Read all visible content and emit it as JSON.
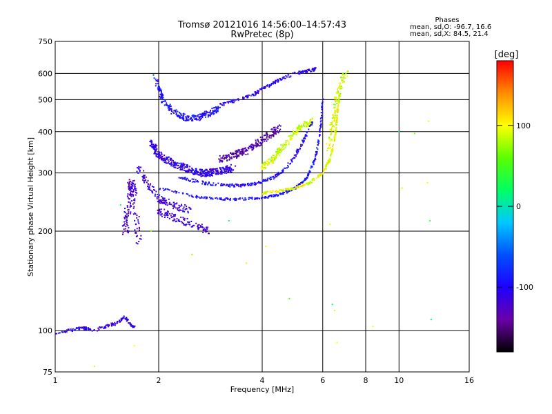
{
  "chart_data": {
    "type": "scatter",
    "title": "Tromsø 20121016 14:56:00–14:57:43",
    "subtitle": "RwPretec (8p)",
    "xlabel": "Frequency [MHz]",
    "ylabel": "Stationary phase Virtual Height [km]",
    "x_scale": "log",
    "y_scale": "log",
    "xlim": [
      1,
      16
    ],
    "ylim": [
      75,
      750
    ],
    "x_ticks": [
      1,
      2,
      4,
      6,
      8,
      10,
      16
    ],
    "y_ticks": [
      75,
      100,
      200,
      300,
      400,
      500,
      600,
      750
    ],
    "x_gridlines": [
      2,
      4,
      6,
      8,
      10
    ],
    "y_gridlines": [
      100,
      200,
      300,
      400,
      500,
      600
    ],
    "grid": true,
    "stats": {
      "heading": "Phases",
      "line_o": "mean, sd,O:  -96.7, 16.6",
      "line_x": "mean, sd,X:  84.5, 21.4"
    },
    "colorbar": {
      "label": "[deg]",
      "min": -180,
      "max": 180,
      "ticks": [
        100,
        0,
        -100
      ],
      "colors": [
        "#000000",
        "#6a00a8",
        "#1e00ff",
        "#0050ff",
        "#00c8ff",
        "#00ff64",
        "#5aff00",
        "#ffff00",
        "#ff8c00",
        "#ff0000"
      ]
    },
    "traces": [
      {
        "name": "",
        "kind": "curve",
        "x": [
          1.0,
          1.1,
          1.2,
          1.3,
          1.4,
          1.5,
          1.6,
          1.65,
          1.7
        ],
        "y": [
          98,
          100,
          102,
          100,
          103,
          105,
          110,
          105,
          102
        ],
        "phase": -110,
        "spread": 0.02,
        "n": 160
      },
      {
        "name": "",
        "kind": "curve",
        "x": [
          1.6,
          1.63,
          1.66,
          1.7,
          1.75
        ],
        "y": [
          200,
          230,
          280,
          260,
          180
        ],
        "phase": -120,
        "spread": 0.07,
        "n": 160
      },
      {
        "name": "",
        "kind": "curve",
        "x": [
          1.95,
          2.05,
          2.2,
          2.4,
          2.6,
          2.8,
          3.0
        ],
        "y": [
          590,
          500,
          460,
          440,
          440,
          455,
          470
        ],
        "phase": -95,
        "spread": 0.04,
        "n": 260
      },
      {
        "name": "",
        "kind": "curve",
        "x": [
          3.0,
          3.4,
          3.8,
          4.0,
          4.3,
          4.6,
          5.0,
          5.4,
          5.8
        ],
        "y": [
          480,
          500,
          520,
          540,
          560,
          580,
          600,
          610,
          620
        ],
        "phase": -105,
        "spread": 0.02,
        "n": 200
      },
      {
        "name": "",
        "kind": "curve",
        "x": [
          1.9,
          2.0,
          2.2,
          2.4,
          2.6,
          2.8,
          3.0,
          3.3
        ],
        "y": [
          370,
          340,
          320,
          310,
          300,
          300,
          305,
          310
        ],
        "phase": -110,
        "spread": 0.05,
        "n": 420
      },
      {
        "name": "",
        "kind": "curve",
        "x": [
          1.75,
          1.85,
          2.0,
          2.2,
          2.5
        ],
        "y": [
          310,
          280,
          250,
          240,
          230
        ],
        "phase": -115,
        "spread": 0.05,
        "n": 140
      },
      {
        "name": "",
        "kind": "curve",
        "x": [
          2.0,
          2.2,
          2.5,
          2.8
        ],
        "y": [
          230,
          220,
          210,
          200
        ],
        "phase": -120,
        "spread": 0.05,
        "n": 110
      },
      {
        "name": "",
        "kind": "curve",
        "x": [
          3.0,
          3.3,
          3.6,
          3.9,
          4.2,
          4.5
        ],
        "y": [
          330,
          340,
          350,
          370,
          390,
          410
        ],
        "phase": -135,
        "spread": 0.05,
        "n": 220
      },
      {
        "name": "",
        "kind": "curve",
        "x": [
          2.0,
          2.5,
          3.0,
          3.5,
          4.0,
          4.5,
          5.0,
          5.4,
          5.7,
          5.9,
          6.0
        ],
        "y": [
          270,
          255,
          250,
          250,
          252,
          258,
          270,
          290,
          330,
          400,
          500
        ],
        "phase": -95,
        "spread": 0.015,
        "n": 300
      },
      {
        "name": "",
        "kind": "curve",
        "x": [
          2.3,
          2.7,
          3.1,
          3.5,
          3.9,
          4.3,
          4.7,
          5.0,
          5.3,
          5.6
        ],
        "y": [
          290,
          280,
          275,
          275,
          280,
          290,
          310,
          340,
          380,
          430
        ],
        "phase": -100,
        "spread": 0.02,
        "n": 260
      },
      {
        "name": "",
        "kind": "curve",
        "x": [
          4.0,
          4.5,
          5.0,
          5.5,
          6.0,
          6.3,
          6.5,
          6.6,
          6.7
        ],
        "y": [
          260,
          265,
          270,
          280,
          300,
          330,
          380,
          440,
          520
        ],
        "phase": 95,
        "spread": 0.015,
        "n": 260
      },
      {
        "name": "",
        "kind": "curve",
        "x": [
          4.0,
          4.3,
          4.6,
          5.0,
          5.3,
          5.6
        ],
        "y": [
          310,
          330,
          360,
          400,
          420,
          430
        ],
        "phase": 90,
        "spread": 0.04,
        "n": 200
      },
      {
        "name": "",
        "kind": "curve",
        "x": [
          6.2,
          6.4,
          6.6,
          6.8,
          7.0
        ],
        "y": [
          350,
          420,
          500,
          560,
          600
        ],
        "phase": 90,
        "spread": 0.05,
        "n": 120
      },
      {
        "name": "",
        "kind": "scatter",
        "x": [
          1.55,
          1.9,
          2.5,
          3.2,
          3.6,
          4.1,
          4.8,
          6.3,
          6.4,
          6.5,
          6.6,
          8.4,
          10.0,
          10.2,
          11.1,
          12.1,
          12.2,
          12.3,
          1.3,
          1.7,
          12.4
        ],
        "y": [
          240,
          200,
          170,
          215,
          160,
          180,
          125,
          210,
          120,
          115,
          92,
          103,
          400,
          270,
          395,
          280,
          430,
          215,
          78,
          90,
          108
        ],
        "phase": 60,
        "spread": 0.02,
        "n": 21
      }
    ]
  }
}
